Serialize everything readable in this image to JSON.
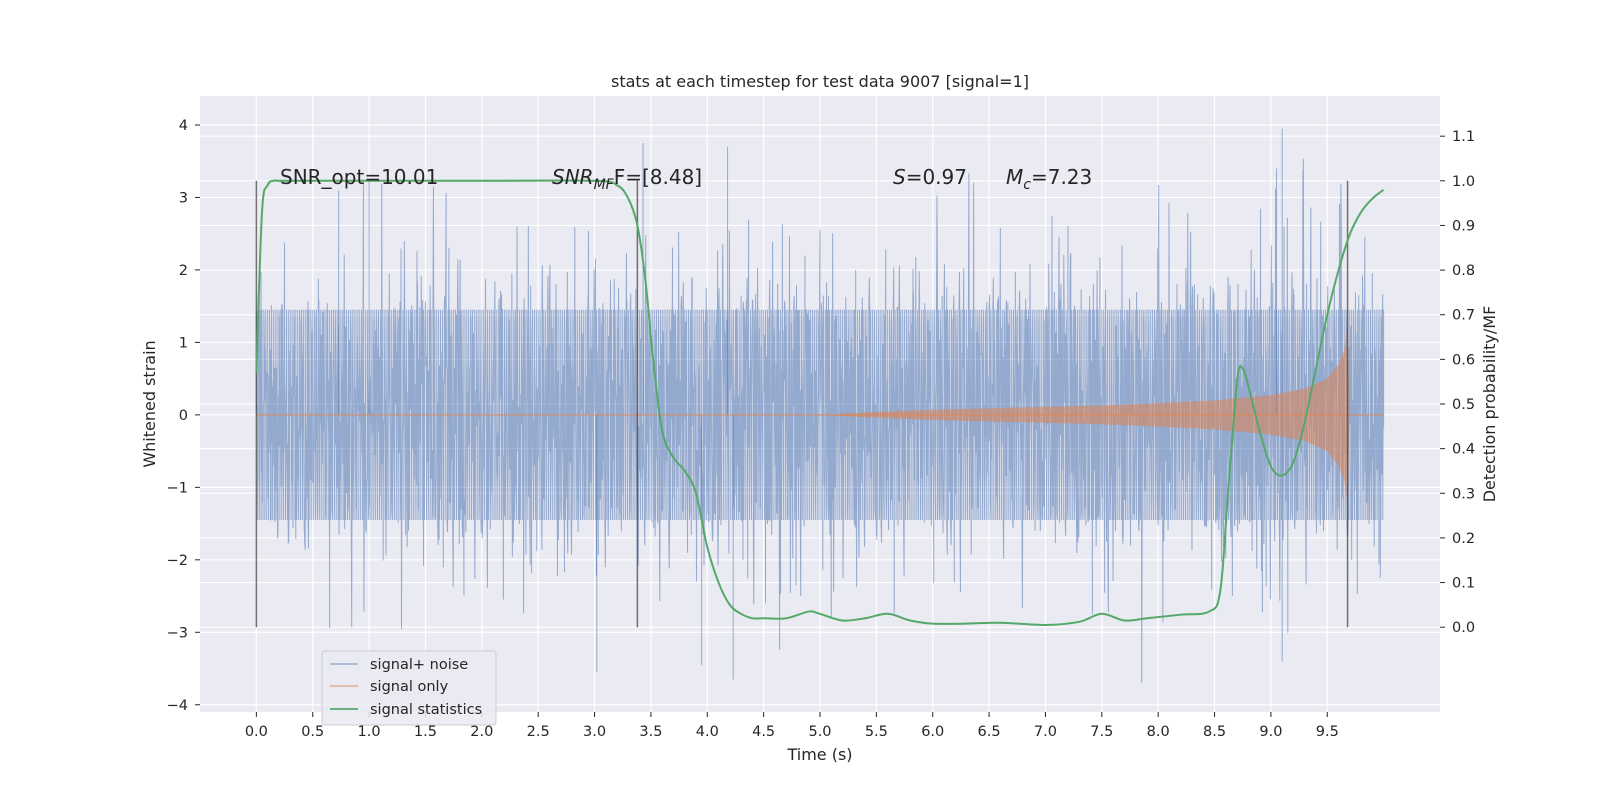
{
  "chart_data": {
    "type": "line",
    "title": "stats at each timestep for test data 9007 [signal=1]",
    "xlabel": "Time (s)",
    "ylabel": "Whitened strain",
    "ylabel_right": "Detection probability/MF",
    "xlim": [
      -0.5,
      10.5
    ],
    "ylim": [
      -4.1,
      4.4
    ],
    "ylim_right": [
      -0.19,
      1.19
    ],
    "x_ticks": [
      0.0,
      0.5,
      1.0,
      1.5,
      2.0,
      2.5,
      3.0,
      3.5,
      4.0,
      4.5,
      5.0,
      5.5,
      6.0,
      6.5,
      7.0,
      7.5,
      8.0,
      8.5,
      9.0,
      9.5
    ],
    "x_tick_labels": [
      "0.0",
      "0.5",
      "1.0",
      "1.5",
      "2.0",
      "2.5",
      "3.0",
      "3.5",
      "4.0",
      "4.5",
      "5.0",
      "5.5",
      "6.0",
      "6.5",
      "7.0",
      "7.5",
      "8.0",
      "8.5",
      "9.0",
      "9.5"
    ],
    "y_ticks": [
      4,
      3,
      2,
      1,
      0,
      -1,
      -2,
      -3,
      -4
    ],
    "y_tick_labels": [
      "4",
      "3",
      "2",
      "1",
      "0",
      "−1",
      "−2",
      "−3",
      "−4"
    ],
    "y_right_ticks": [
      1.1,
      1.0,
      0.9,
      0.8,
      0.7,
      0.6,
      0.5,
      0.4,
      0.3,
      0.2,
      0.1,
      0.0
    ],
    "y_right_tick_labels": [
      "1.1",
      "1.0",
      "0.9",
      "0.8",
      "0.7",
      "0.6",
      "0.5",
      "0.4",
      "0.3",
      "0.2",
      "0.1",
      "0.0"
    ],
    "grid": true,
    "legend_position": "lower-left",
    "annotations": {
      "snr_opt": "SNR_opt=10.01",
      "snr_mf_symbol": "SNR",
      "snr_mf_sub": "MF",
      "snr_mf_value": "F=[8.48]",
      "s_symbol": "S",
      "s_value": "=0.97",
      "mc_symbol": "M",
      "mc_sub": "c",
      "mc_value": "=7.23"
    },
    "vertical_markers_s": [
      0.0,
      3.38,
      9.68
    ],
    "series": [
      {
        "name": "signal+ noise",
        "color": "#4c72b0",
        "axis": "left",
        "envelope": {
          "t_start": 0.0,
          "t_end": 10.0,
          "core_band": [
            -1.45,
            1.45
          ],
          "typical_extreme": [
            -2.9,
            3.0
          ],
          "max_value": 4.05,
          "min_value": -3.7
        }
      },
      {
        "name": "signal only",
        "color": "#dd8452",
        "axis": "left",
        "envelope_t": [
          0.0,
          5.0,
          5.5,
          6.0,
          6.5,
          7.0,
          7.5,
          8.0,
          8.5,
          9.0,
          9.3,
          9.5,
          9.6,
          9.65,
          9.68,
          9.7,
          10.0
        ],
        "envelope_amp": [
          0.0,
          0.0,
          0.04,
          0.07,
          0.09,
          0.11,
          0.13,
          0.16,
          0.2,
          0.27,
          0.36,
          0.5,
          0.7,
          0.9,
          1.25,
          0.0,
          0.0
        ]
      },
      {
        "name": "signal statistics",
        "color": "#55a868",
        "axis": "right",
        "t": [
          0.0,
          0.05,
          0.1,
          0.15,
          0.2,
          0.3,
          0.5,
          1.0,
          2.0,
          3.0,
          3.2,
          3.3,
          3.38,
          3.45,
          3.52,
          3.6,
          3.7,
          3.8,
          3.9,
          4.0,
          4.1,
          4.2,
          4.3,
          4.4,
          4.5,
          4.7,
          4.9,
          5.0,
          5.2,
          5.4,
          5.6,
          5.8,
          6.0,
          6.3,
          6.6,
          7.0,
          7.3,
          7.5,
          7.7,
          7.9,
          8.2,
          8.45,
          8.55,
          8.62,
          8.7,
          8.75,
          8.82,
          8.9,
          9.0,
          9.1,
          9.2,
          9.3,
          9.4,
          9.5,
          9.6,
          9.7,
          9.8,
          9.9,
          10.0
        ],
        "values": [
          0.57,
          0.93,
          0.99,
          1.0,
          1.0,
          1.0,
          1.0,
          1.0,
          1.0,
          1.0,
          0.99,
          0.96,
          0.9,
          0.78,
          0.6,
          0.44,
          0.38,
          0.35,
          0.3,
          0.18,
          0.1,
          0.05,
          0.03,
          0.02,
          0.02,
          0.02,
          0.035,
          0.03,
          0.015,
          0.02,
          0.03,
          0.015,
          0.008,
          0.008,
          0.01,
          0.005,
          0.012,
          0.03,
          0.015,
          0.02,
          0.028,
          0.035,
          0.08,
          0.3,
          0.55,
          0.58,
          0.52,
          0.44,
          0.36,
          0.34,
          0.37,
          0.46,
          0.58,
          0.7,
          0.8,
          0.88,
          0.93,
          0.96,
          0.98
        ]
      }
    ]
  }
}
